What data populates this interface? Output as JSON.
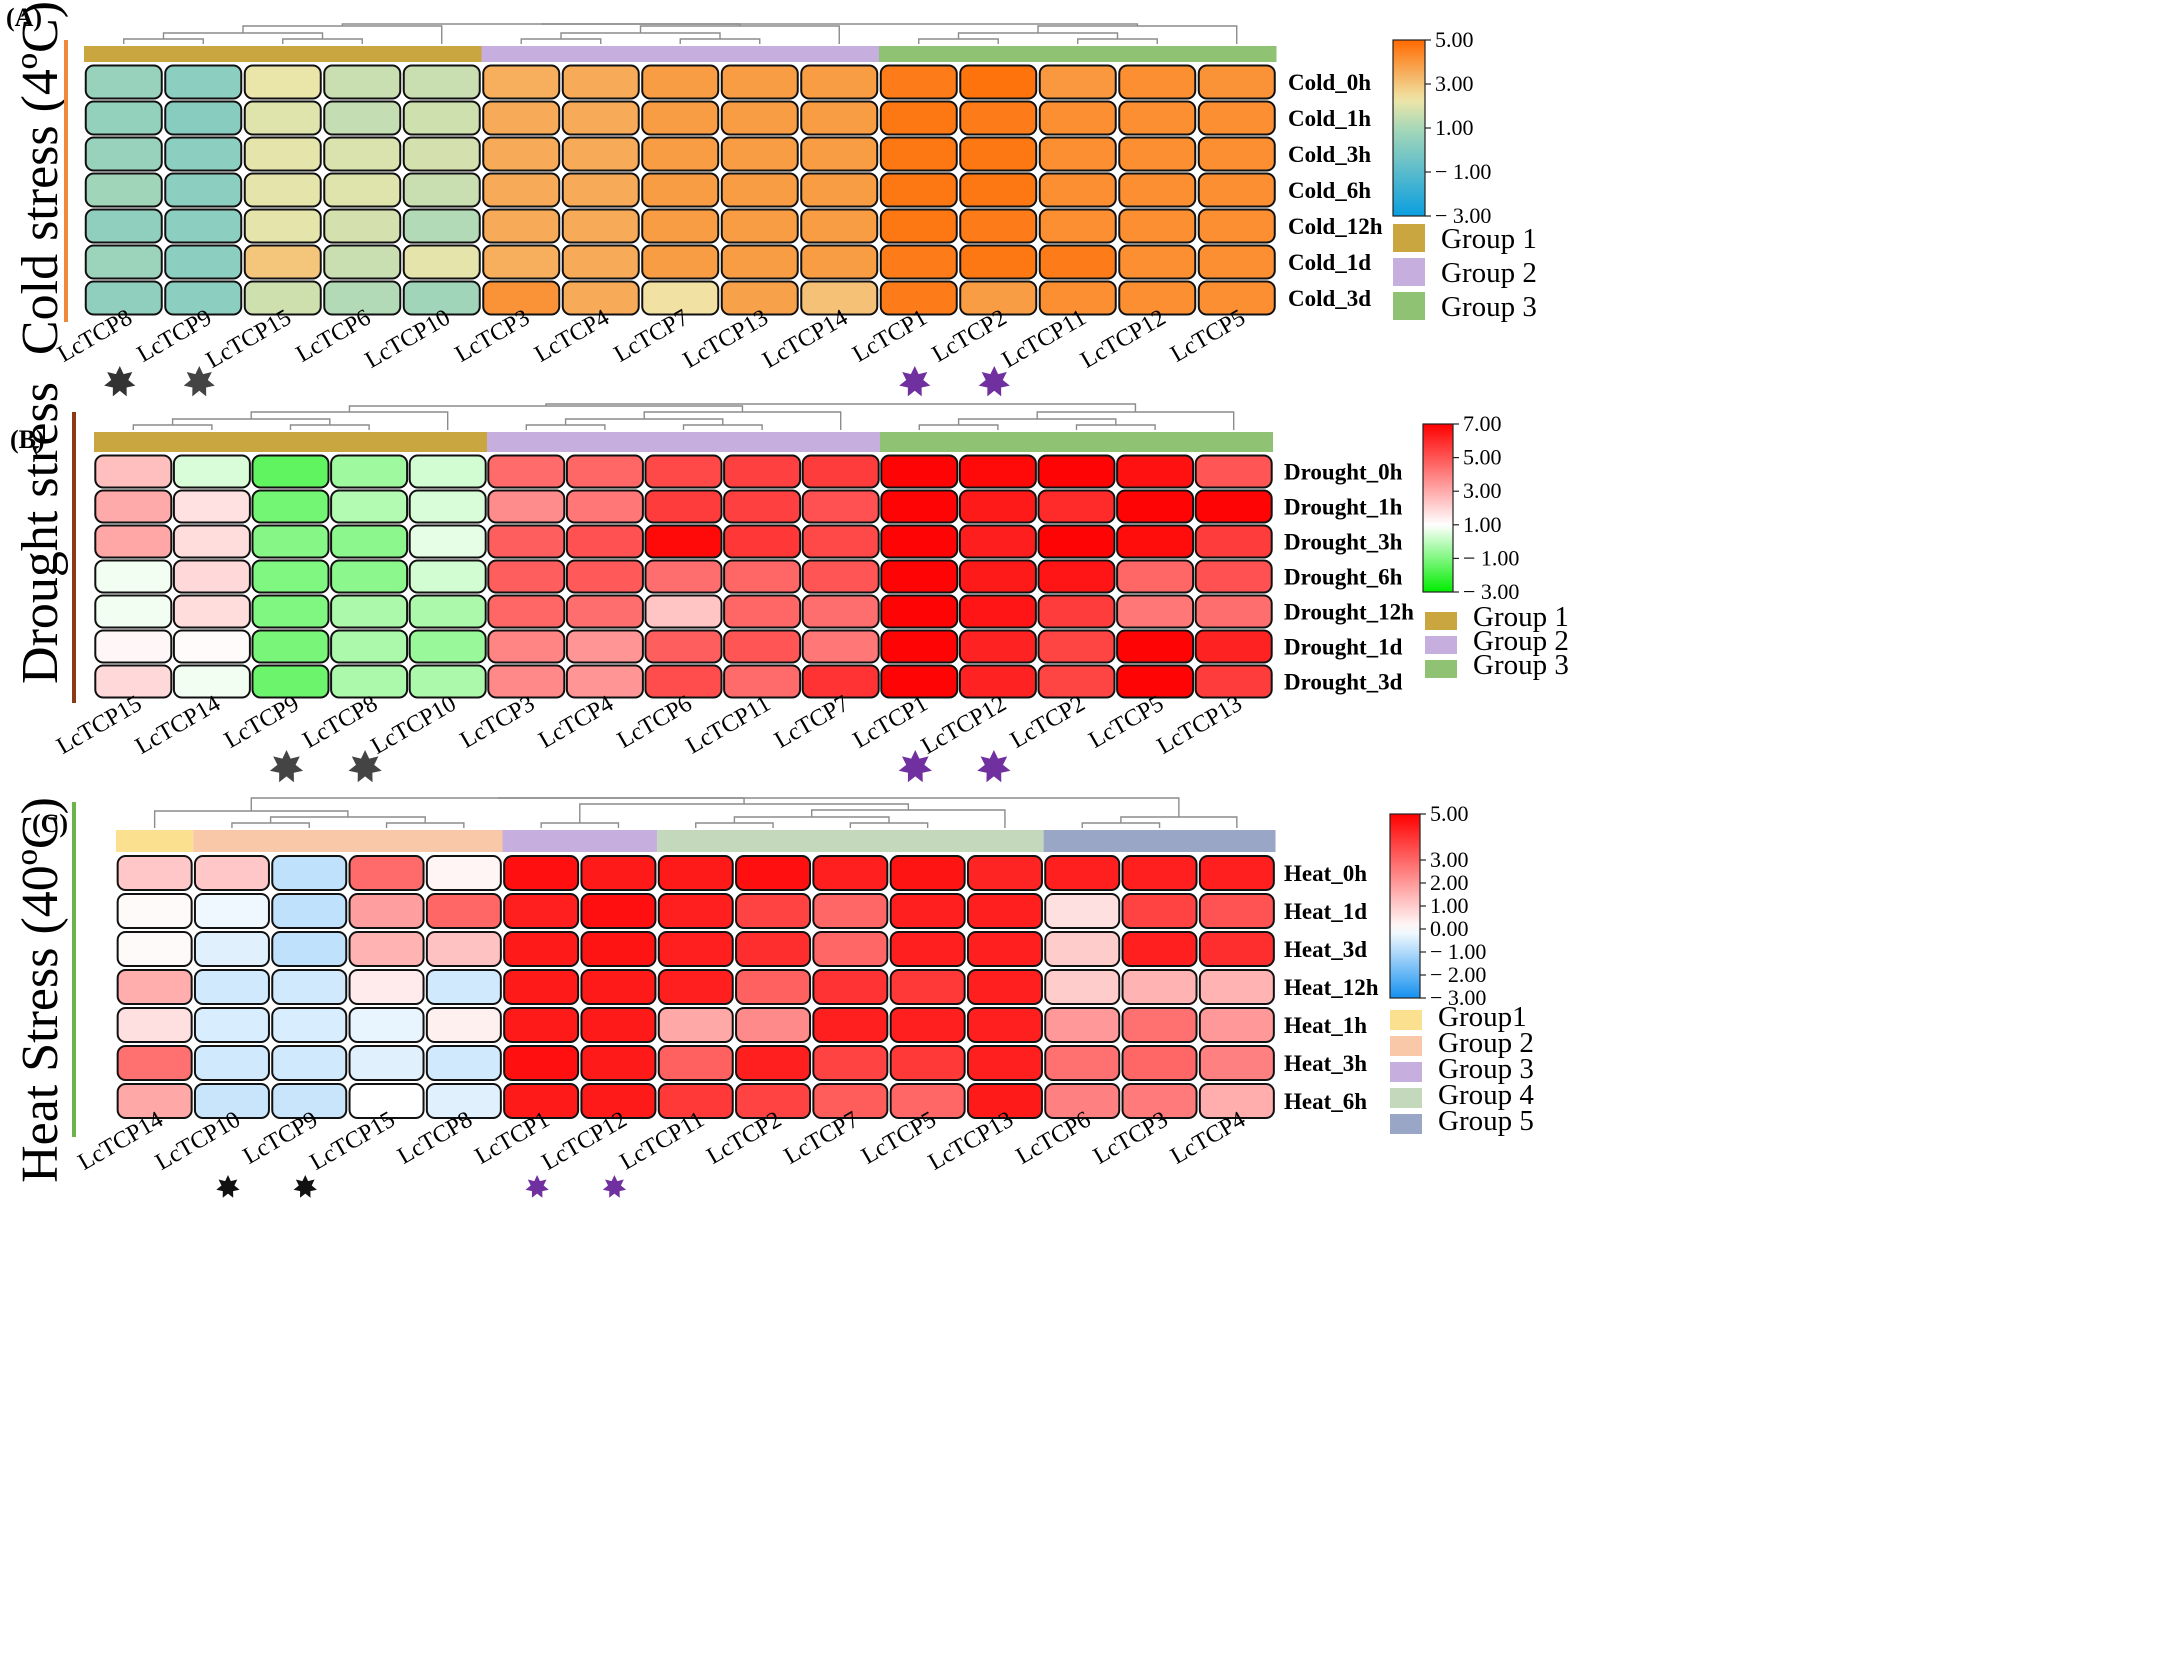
{
  "colors": {
    "cold": {
      "low": "#0a9ee0",
      "mid": "#a8d8b8",
      "mid2": "#f0e6a8",
      "high": "#ff6a00"
    },
    "drought": {
      "low": "#00ee00",
      "mid": "#ffffff",
      "high": "#ff0000"
    },
    "heat": {
      "low": "#1490f0",
      "mid": "#ffffff",
      "high": "#ff0000"
    },
    "groups_abc": {
      "g1": "#c9a640",
      "g2": "#c6aede",
      "g3": "#8fc272"
    },
    "groups_c": {
      "g1": "#fbe08f",
      "g2": "#f8c8a8",
      "g3": "#c6aede",
      "g4": "#c4d8bc",
      "g5": "#9aa6c6"
    }
  },
  "chart_data": [
    {
      "type": "heatmap",
      "panel_letter": "(A)",
      "stress_title": "Cold stress (4ºC)",
      "columns": [
        "LcTCP8",
        "LcTCP9",
        "LcTCP15",
        "LcTCP6",
        "LcTCP10",
        "LcTCP3",
        "LcTCP4",
        "LcTCP7",
        "LcTCP13",
        "LcTCP14",
        "LcTCP1",
        "LcTCP2",
        "LcTCP11",
        "LcTCP12",
        "LcTCP5"
      ],
      "rows": [
        "Cold_0h",
        "Cold_1h",
        "Cold_3h",
        "Cold_6h",
        "Cold_12h",
        "Cold_1d",
        "Cold_3d"
      ],
      "values": [
        [
          0.6,
          0.3,
          2.2,
          1.6,
          1.6,
          3.5,
          3.6,
          3.9,
          3.9,
          3.9,
          4.6,
          4.8,
          4.0,
          4.2,
          4.1
        ],
        [
          0.5,
          0.2,
          2.0,
          1.5,
          1.7,
          3.6,
          3.6,
          3.9,
          3.9,
          3.9,
          4.7,
          4.6,
          4.2,
          4.2,
          4.2
        ],
        [
          0.6,
          0.3,
          2.1,
          1.9,
          1.8,
          3.6,
          3.6,
          3.9,
          3.9,
          3.9,
          4.7,
          4.7,
          4.2,
          4.2,
          4.2
        ],
        [
          0.8,
          0.3,
          2.1,
          2.0,
          1.6,
          3.6,
          3.6,
          3.9,
          3.9,
          3.9,
          4.7,
          4.7,
          4.2,
          4.2,
          4.2
        ],
        [
          0.4,
          0.3,
          2.1,
          1.8,
          1.2,
          3.6,
          3.6,
          3.9,
          3.9,
          3.9,
          4.7,
          4.6,
          4.2,
          4.2,
          4.2
        ],
        [
          0.7,
          0.3,
          3.0,
          1.6,
          2.1,
          3.5,
          3.6,
          3.9,
          3.9,
          3.9,
          4.6,
          4.7,
          4.6,
          4.2,
          4.2
        ],
        [
          0.4,
          0.3,
          1.7,
          1.2,
          0.8,
          4.1,
          3.6,
          2.4,
          3.8,
          3.1,
          4.6,
          3.9,
          4.2,
          4.2,
          4.2
        ]
      ],
      "color_scale": {
        "min": -3,
        "max": 5,
        "ticks": [
          "5.00",
          "3.00",
          "1.00",
          "− 1.00",
          "− 3.00"
        ]
      },
      "groups": [
        {
          "name": "Group  1",
          "span": 5,
          "color": "#c9a640"
        },
        {
          "name": "Group  2",
          "span": 5,
          "color": "#c6aede"
        },
        {
          "name": "Group  3",
          "span": 5,
          "color": "#8fc272"
        }
      ],
      "dendrogram_pairs": [
        [
          0,
          1
        ],
        [
          3,
          4
        ],
        [
          2,
          "34"
        ]
      ],
      "stars": [
        {
          "col": 0,
          "color": "#333333"
        },
        {
          "col": 1,
          "color": "#444444"
        },
        {
          "col": 10,
          "color": "#7030a0"
        },
        {
          "col": 11,
          "color": "#7030a0"
        }
      ]
    },
    {
      "type": "heatmap",
      "panel_letter": "(B)",
      "stress_title": "Drought stress",
      "columns": [
        "LcTCP15",
        "LcTCP14",
        "LcTCP9",
        "LcTCP8",
        "LcTCP10",
        "LcTCP3",
        "LcTCP4",
        "LcTCP6",
        "LcTCP11",
        "LcTCP7",
        "LcTCP1",
        "LcTCP12",
        "LcTCP2",
        "LcTCP5",
        "LcTCP13"
      ],
      "rows": [
        "Drought_0h",
        "Drought_1h",
        "Drought_3h",
        "Drought_6h",
        "Drought_12h",
        "Drought_1d",
        "Drought_3d"
      ],
      "values": [
        [
          2.5,
          0.4,
          -1.5,
          -0.5,
          0.3,
          4.5,
          4.6,
          5.3,
          5.5,
          5.6,
          6.9,
          6.8,
          6.9,
          6.6,
          5.0
        ],
        [
          3.0,
          1.7,
          -1.2,
          -0.2,
          0.4,
          3.7,
          4.2,
          5.6,
          5.5,
          5.1,
          6.9,
          6.4,
          6.0,
          6.9,
          6.9
        ],
        [
          3.1,
          1.8,
          -0.9,
          -0.8,
          0.6,
          4.8,
          5.1,
          6.8,
          5.7,
          5.3,
          6.9,
          6.3,
          6.9,
          6.7,
          5.6
        ],
        [
          0.8,
          1.9,
          -1.0,
          -0.8,
          0.3,
          4.8,
          4.9,
          4.4,
          4.6,
          5.0,
          6.9,
          6.4,
          6.5,
          4.6,
          5.1
        ],
        [
          0.8,
          1.8,
          -1.0,
          -0.3,
          -0.3,
          4.6,
          4.4,
          2.4,
          4.6,
          4.4,
          6.9,
          6.5,
          5.6,
          4.2,
          4.4
        ],
        [
          1.2,
          1.1,
          -1.1,
          -0.3,
          -0.6,
          3.9,
          3.5,
          4.8,
          5.0,
          4.2,
          6.9,
          6.2,
          5.4,
          6.9,
          6.2
        ],
        [
          1.9,
          0.8,
          -1.3,
          -0.3,
          -0.3,
          3.8,
          3.5,
          5.2,
          4.5,
          5.8,
          6.9,
          6.2,
          5.4,
          6.9,
          5.6
        ]
      ],
      "color_scale": {
        "min": -3,
        "max": 7,
        "ticks": [
          "7.00",
          "5.00",
          "3.00",
          "1.00",
          "− 1.00",
          "− 3.00"
        ]
      },
      "groups": [
        {
          "name": "Group  1",
          "span": 5,
          "color": "#c9a640"
        },
        {
          "name": "Group  2",
          "span": 5,
          "color": "#c6aede"
        },
        {
          "name": "Group  3",
          "span": 5,
          "color": "#8fc272"
        }
      ],
      "stars": [
        {
          "col": 2,
          "color": "#444444"
        },
        {
          "col": 3,
          "color": "#444444"
        },
        {
          "col": 10,
          "color": "#7030a0"
        },
        {
          "col": 11,
          "color": "#7030a0"
        }
      ]
    },
    {
      "type": "heatmap",
      "panel_letter": "(C)",
      "stress_title": "Heat Stress (40ºC)",
      "columns": [
        "LcTCP14",
        "LcTCP10",
        "LcTCP9",
        "LcTCP15",
        "LcTCP8",
        "LcTCP1",
        "LcTCP12",
        "LcTCP11",
        "LcTCP2",
        "LcTCP7",
        "LcTCP5",
        "LcTCP13",
        "LcTCP6",
        "LcTCP3",
        "LcTCP4"
      ],
      "rows": [
        "Heat_0h",
        "Heat_1d",
        "Heat_3d",
        "Heat_12h",
        "Heat_1h",
        "Heat_3h",
        "Heat_6h"
      ],
      "values": [
        [
          1.1,
          1.1,
          -0.8,
          2.9,
          0.2,
          4.7,
          4.5,
          4.5,
          4.7,
          4.4,
          4.6,
          4.3,
          4.4,
          4.4,
          4.4
        ],
        [
          0.1,
          -0.2,
          -0.8,
          1.9,
          3.0,
          4.4,
          4.7,
          4.4,
          3.7,
          3.0,
          4.4,
          4.4,
          0.6,
          3.7,
          3.4
        ],
        [
          0.1,
          -0.4,
          -0.8,
          1.5,
          1.2,
          4.5,
          4.6,
          4.4,
          4.1,
          3.0,
          4.4,
          4.4,
          1.0,
          4.4,
          4.1
        ],
        [
          1.6,
          -0.6,
          -0.6,
          0.4,
          -0.6,
          4.5,
          4.5,
          4.4,
          3.1,
          4.0,
          3.9,
          4.4,
          1.0,
          1.5,
          1.5
        ],
        [
          0.6,
          -0.5,
          -0.5,
          -0.3,
          0.3,
          4.5,
          4.5,
          1.7,
          2.3,
          4.4,
          4.4,
          4.4,
          2.0,
          2.8,
          2.0
        ],
        [
          2.8,
          -0.6,
          -0.6,
          -0.4,
          -0.6,
          4.7,
          4.5,
          3.1,
          4.4,
          3.7,
          3.9,
          4.4,
          2.8,
          3.0,
          2.5
        ],
        [
          1.7,
          -0.7,
          -0.7,
          0.0,
          -0.4,
          4.5,
          4.5,
          3.9,
          3.7,
          3.2,
          3.0,
          4.5,
          2.5,
          2.6,
          1.6
        ]
      ],
      "color_scale": {
        "min": -3,
        "max": 5,
        "ticks": [
          "5.00",
          "3.00",
          "2.00",
          "1.00",
          "0.00",
          "− 1.00",
          "− 2.00",
          "− 3.00"
        ]
      },
      "groups": [
        {
          "name": "Group1",
          "span": 1,
          "color": "#fbe08f"
        },
        {
          "name": "Group 2",
          "span": 4,
          "color": "#f8c8a8"
        },
        {
          "name": "Group 3",
          "span": 2,
          "color": "#c6aede"
        },
        {
          "name": "Group 4",
          "span": 5,
          "color": "#c4d8bc"
        },
        {
          "name": "Group 5",
          "span": 3,
          "color": "#9aa6c6"
        }
      ],
      "stars": [
        {
          "col": 1,
          "color": "#111111"
        },
        {
          "col": 2,
          "color": "#111111"
        },
        {
          "col": 5,
          "color": "#7030a0"
        },
        {
          "col": 6,
          "color": "#7030a0"
        }
      ]
    }
  ]
}
